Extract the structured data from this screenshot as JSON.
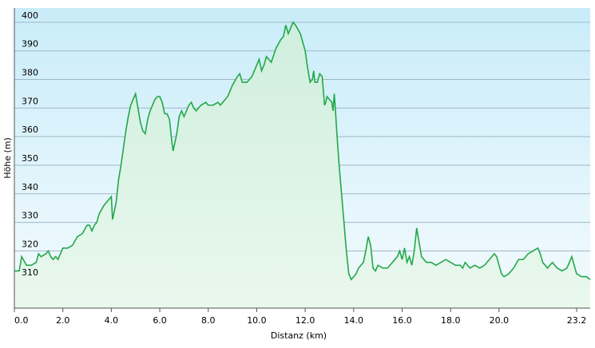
{
  "chart_data": {
    "type": "area",
    "title": "",
    "xlabel": "Distanz  (km)",
    "ylabel": "Höhe (m)",
    "xlim": [
      0.0,
      23.2
    ],
    "ylim": [
      300,
      405
    ],
    "x_ticks": [
      0.0,
      2.0,
      4.0,
      6.0,
      8.0,
      10.0,
      12.0,
      14.0,
      16.0,
      18.0,
      20.0,
      23.2
    ],
    "x_tick_labels": [
      "0.0",
      "2.0",
      "4.0",
      "6.0",
      "8.0",
      "10.0",
      "12.0",
      "14.0",
      "16.0",
      "18.0",
      "20.0",
      "23.2"
    ],
    "y_ticks": [
      310,
      320,
      330,
      340,
      350,
      360,
      370,
      380,
      390,
      400
    ],
    "y_tick_labels": [
      "310",
      "320",
      "330",
      "340",
      "350",
      "360",
      "370",
      "380",
      "390",
      "400"
    ],
    "grid": true,
    "series": [
      {
        "color": "#22a84a",
        "fill": "#d5f0dc",
        "points": [
          [
            0.0,
            313
          ],
          [
            0.2,
            313
          ],
          [
            0.3,
            318
          ],
          [
            0.5,
            315
          ],
          [
            0.7,
            315
          ],
          [
            0.9,
            316
          ],
          [
            1.0,
            319
          ],
          [
            1.1,
            318
          ],
          [
            1.3,
            319
          ],
          [
            1.4,
            320
          ],
          [
            1.5,
            318
          ],
          [
            1.6,
            317
          ],
          [
            1.7,
            318
          ],
          [
            1.8,
            317
          ],
          [
            1.9,
            319
          ],
          [
            2.0,
            321
          ],
          [
            2.2,
            321
          ],
          [
            2.4,
            322
          ],
          [
            2.6,
            325
          ],
          [
            2.8,
            326
          ],
          [
            3.0,
            329
          ],
          [
            3.1,
            329
          ],
          [
            3.2,
            327
          ],
          [
            3.3,
            329
          ],
          [
            3.4,
            330
          ],
          [
            3.5,
            333
          ],
          [
            3.7,
            336
          ],
          [
            3.8,
            337
          ],
          [
            4.0,
            339
          ],
          [
            4.05,
            331
          ],
          [
            4.1,
            333
          ],
          [
            4.2,
            337
          ],
          [
            4.3,
            345
          ],
          [
            4.4,
            350
          ],
          [
            4.5,
            356
          ],
          [
            4.6,
            362
          ],
          [
            4.7,
            367
          ],
          [
            4.8,
            371
          ],
          [
            4.9,
            373
          ],
          [
            5.0,
            375
          ],
          [
            5.1,
            370
          ],
          [
            5.2,
            365
          ],
          [
            5.3,
            362
          ],
          [
            5.4,
            361
          ],
          [
            5.5,
            366
          ],
          [
            5.6,
            369
          ],
          [
            5.8,
            373
          ],
          [
            5.9,
            374
          ],
          [
            6.0,
            374
          ],
          [
            6.1,
            372
          ],
          [
            6.2,
            368
          ],
          [
            6.3,
            368
          ],
          [
            6.4,
            366
          ],
          [
            6.5,
            358
          ],
          [
            6.55,
            355
          ],
          [
            6.6,
            357
          ],
          [
            6.7,
            361
          ],
          [
            6.8,
            367
          ],
          [
            6.9,
            369
          ],
          [
            7.0,
            367
          ],
          [
            7.1,
            369
          ],
          [
            7.2,
            371
          ],
          [
            7.3,
            372
          ],
          [
            7.4,
            370
          ],
          [
            7.5,
            369
          ],
          [
            7.6,
            370
          ],
          [
            7.7,
            371
          ],
          [
            7.9,
            372
          ],
          [
            8.0,
            371
          ],
          [
            8.2,
            371
          ],
          [
            8.4,
            372
          ],
          [
            8.5,
            371
          ],
          [
            8.6,
            372
          ],
          [
            8.8,
            374
          ],
          [
            9.0,
            378
          ],
          [
            9.2,
            381
          ],
          [
            9.3,
            382
          ],
          [
            9.4,
            379
          ],
          [
            9.6,
            379
          ],
          [
            9.8,
            381
          ],
          [
            10.0,
            385
          ],
          [
            10.1,
            387
          ],
          [
            10.2,
            383
          ],
          [
            10.3,
            385
          ],
          [
            10.4,
            388
          ],
          [
            10.5,
            387
          ],
          [
            10.6,
            386
          ],
          [
            10.8,
            391
          ],
          [
            11.0,
            394
          ],
          [
            11.1,
            395
          ],
          [
            11.2,
            399
          ],
          [
            11.3,
            396
          ],
          [
            11.4,
            398
          ],
          [
            11.5,
            400
          ],
          [
            11.6,
            399
          ],
          [
            11.8,
            396
          ],
          [
            12.0,
            390
          ],
          [
            12.1,
            384
          ],
          [
            12.2,
            379
          ],
          [
            12.3,
            380
          ],
          [
            12.35,
            383
          ],
          [
            12.4,
            379
          ],
          [
            12.5,
            379
          ],
          [
            12.6,
            382
          ],
          [
            12.7,
            381
          ],
          [
            12.8,
            371
          ],
          [
            12.85,
            372
          ],
          [
            12.9,
            374
          ],
          [
            13.0,
            373
          ],
          [
            13.1,
            372
          ],
          [
            13.15,
            369
          ],
          [
            13.2,
            375
          ],
          [
            13.25,
            369
          ],
          [
            13.3,
            362
          ],
          [
            13.4,
            350
          ],
          [
            13.5,
            340
          ],
          [
            13.6,
            330
          ],
          [
            13.7,
            320
          ],
          [
            13.8,
            312
          ],
          [
            13.9,
            310
          ],
          [
            14.0,
            311
          ],
          [
            14.1,
            312
          ],
          [
            14.2,
            314
          ],
          [
            14.4,
            316
          ],
          [
            14.5,
            320
          ],
          [
            14.6,
            325
          ],
          [
            14.7,
            322
          ],
          [
            14.8,
            314
          ],
          [
            14.9,
            313
          ],
          [
            15.0,
            315
          ],
          [
            15.2,
            314
          ],
          [
            15.4,
            314
          ],
          [
            15.6,
            316
          ],
          [
            15.8,
            318
          ],
          [
            15.9,
            320
          ],
          [
            16.0,
            317
          ],
          [
            16.1,
            321
          ],
          [
            16.2,
            316
          ],
          [
            16.3,
            318
          ],
          [
            16.4,
            315
          ],
          [
            16.5,
            320
          ],
          [
            16.6,
            328
          ],
          [
            16.7,
            323
          ],
          [
            16.8,
            318
          ],
          [
            17.0,
            316
          ],
          [
            17.2,
            316
          ],
          [
            17.4,
            315
          ],
          [
            17.6,
            316
          ],
          [
            17.8,
            317
          ],
          [
            18.0,
            316
          ],
          [
            18.2,
            315
          ],
          [
            18.4,
            315
          ],
          [
            18.5,
            314
          ],
          [
            18.6,
            316
          ],
          [
            18.8,
            314
          ],
          [
            19.0,
            315
          ],
          [
            19.2,
            314
          ],
          [
            19.4,
            315
          ],
          [
            19.6,
            317
          ],
          [
            19.8,
            319
          ],
          [
            19.9,
            318
          ],
          [
            20.0,
            315
          ],
          [
            20.1,
            312
          ],
          [
            20.2,
            311
          ],
          [
            20.4,
            312
          ],
          [
            20.6,
            314
          ],
          [
            20.8,
            317
          ],
          [
            21.0,
            317
          ],
          [
            21.2,
            319
          ],
          [
            21.4,
            320
          ],
          [
            21.6,
            321
          ],
          [
            21.7,
            319
          ],
          [
            21.8,
            316
          ],
          [
            22.0,
            314
          ],
          [
            22.2,
            316
          ],
          [
            22.4,
            314
          ],
          [
            22.6,
            313
          ],
          [
            22.8,
            314
          ],
          [
            23.0,
            318
          ],
          [
            23.1,
            315
          ],
          [
            23.2,
            312
          ],
          [
            23.4,
            311
          ],
          [
            23.6,
            311
          ],
          [
            23.8,
            310
          ]
        ]
      }
    ]
  }
}
